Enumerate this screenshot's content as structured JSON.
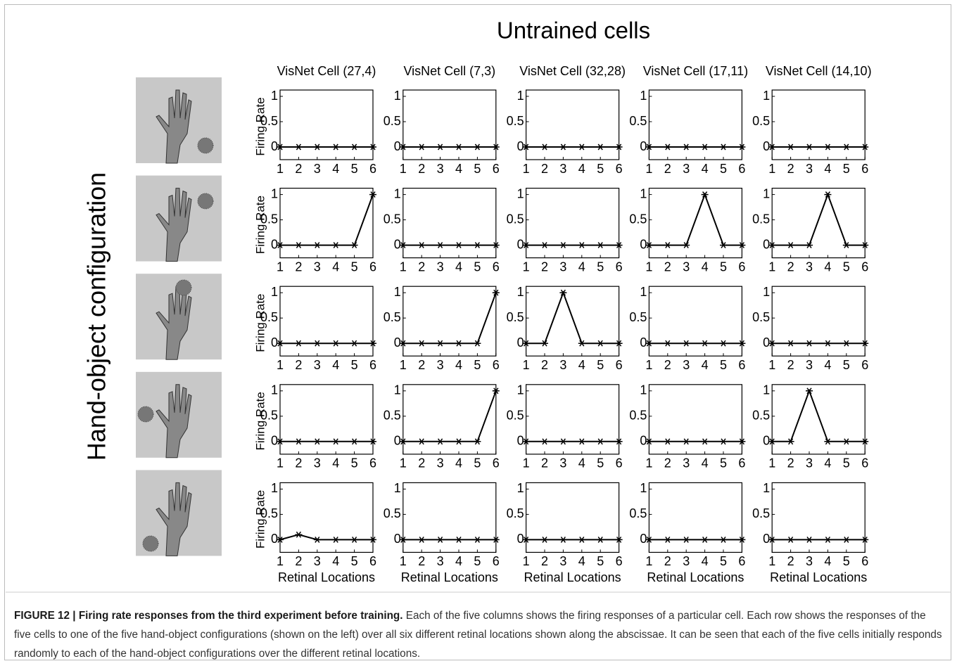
{
  "figure": {
    "title": "Untrained cells",
    "row_label": "Hand-object configuration",
    "caption": {
      "label": "FIGURE 12 | Firing rate responses from the third experiment before training.",
      "text": "Each of the five columns shows the firing responses of a particular cell. Each row shows the responses of the five cells to one of the five hand-object configurations (shown on the left) over all six different retinal locations shown along the abscissae. It can be seen that each of the five cells initially responds randomly to each of the hand-object configurations over the different retinal locations."
    }
  },
  "chart_data": [
    {
      "type": "line",
      "title": "VisNet Cell (27,4)",
      "ylabel": "Firing Rate",
      "x": [
        1,
        2,
        3,
        4,
        5,
        6
      ],
      "values": [
        0,
        0,
        0,
        0,
        0,
        0
      ],
      "color": "#000000",
      "xlim": [
        1,
        6
      ],
      "ylim": [
        -0.25,
        1.125
      ],
      "xticks": [
        1,
        2,
        3,
        4,
        5,
        6
      ],
      "yticks": [
        0,
        0.5,
        1
      ]
    },
    {
      "type": "line",
      "title": "VisNet Cell (7,3)",
      "x": [
        1,
        2,
        3,
        4,
        5,
        6
      ],
      "values": [
        0,
        0,
        0,
        0,
        0,
        0
      ],
      "color": "#000000",
      "xlim": [
        1,
        6
      ],
      "ylim": [
        -0.25,
        1.125
      ],
      "xticks": [
        1,
        2,
        3,
        4,
        5,
        6
      ],
      "yticks": [
        0,
        0.5,
        1
      ]
    },
    {
      "type": "line",
      "title": "VisNet Cell (32,28)",
      "x": [
        1,
        2,
        3,
        4,
        5,
        6
      ],
      "values": [
        0,
        0,
        0,
        0,
        0,
        0
      ],
      "color": "#000000",
      "xlim": [
        1,
        6
      ],
      "ylim": [
        -0.25,
        1.125
      ],
      "xticks": [
        1,
        2,
        3,
        4,
        5,
        6
      ],
      "yticks": [
        0,
        0.5,
        1
      ]
    },
    {
      "type": "line",
      "title": "VisNet Cell (17,11)",
      "x": [
        1,
        2,
        3,
        4,
        5,
        6
      ],
      "values": [
        0,
        0,
        0,
        0,
        0,
        0
      ],
      "color": "#000000",
      "xlim": [
        1,
        6
      ],
      "ylim": [
        -0.25,
        1.125
      ],
      "xticks": [
        1,
        2,
        3,
        4,
        5,
        6
      ],
      "yticks": [
        0,
        0.5,
        1
      ]
    },
    {
      "type": "line",
      "title": "VisNet Cell (14,10)",
      "x": [
        1,
        2,
        3,
        4,
        5,
        6
      ],
      "values": [
        0,
        0,
        0,
        0,
        0,
        0
      ],
      "color": "#000000",
      "xlim": [
        1,
        6
      ],
      "ylim": [
        -0.25,
        1.125
      ],
      "xticks": [
        1,
        2,
        3,
        4,
        5,
        6
      ],
      "yticks": [
        0,
        0.5,
        1
      ]
    },
    {
      "type": "line",
      "ylabel": "Firing Rate",
      "x": [
        1,
        2,
        3,
        4,
        5,
        6
      ],
      "values": [
        0,
        0,
        0,
        0,
        0,
        1
      ],
      "color": "#000000",
      "xlim": [
        1,
        6
      ],
      "ylim": [
        -0.25,
        1.125
      ],
      "xticks": [
        1,
        2,
        3,
        4,
        5,
        6
      ],
      "yticks": [
        0,
        0.5,
        1
      ]
    },
    {
      "type": "line",
      "x": [
        1,
        2,
        3,
        4,
        5,
        6
      ],
      "values": [
        0,
        0,
        0,
        0,
        0,
        0
      ],
      "color": "#000000",
      "xlim": [
        1,
        6
      ],
      "ylim": [
        -0.25,
        1.125
      ],
      "xticks": [
        1,
        2,
        3,
        4,
        5,
        6
      ],
      "yticks": [
        0,
        0.5,
        1
      ]
    },
    {
      "type": "line",
      "x": [
        1,
        2,
        3,
        4,
        5,
        6
      ],
      "values": [
        0,
        0,
        0,
        0,
        0,
        0
      ],
      "color": "#000000",
      "xlim": [
        1,
        6
      ],
      "ylim": [
        -0.25,
        1.125
      ],
      "xticks": [
        1,
        2,
        3,
        4,
        5,
        6
      ],
      "yticks": [
        0,
        0.5,
        1
      ]
    },
    {
      "type": "line",
      "x": [
        1,
        2,
        3,
        4,
        5,
        6
      ],
      "values": [
        0,
        0,
        0,
        1,
        0,
        0
      ],
      "color": "#000000",
      "xlim": [
        1,
        6
      ],
      "ylim": [
        -0.25,
        1.125
      ],
      "xticks": [
        1,
        2,
        3,
        4,
        5,
        6
      ],
      "yticks": [
        0,
        0.5,
        1
      ]
    },
    {
      "type": "line",
      "x": [
        1,
        2,
        3,
        4,
        5,
        6
      ],
      "values": [
        0,
        0,
        0,
        1,
        0,
        0
      ],
      "color": "#000000",
      "xlim": [
        1,
        6
      ],
      "ylim": [
        -0.25,
        1.125
      ],
      "xticks": [
        1,
        2,
        3,
        4,
        5,
        6
      ],
      "yticks": [
        0,
        0.5,
        1
      ]
    },
    {
      "type": "line",
      "ylabel": "Firing Rate",
      "x": [
        1,
        2,
        3,
        4,
        5,
        6
      ],
      "values": [
        0,
        0,
        0,
        0,
        0,
        0
      ],
      "color": "#000000",
      "xlim": [
        1,
        6
      ],
      "ylim": [
        -0.25,
        1.125
      ],
      "xticks": [
        1,
        2,
        3,
        4,
        5,
        6
      ],
      "yticks": [
        0,
        0.5,
        1
      ]
    },
    {
      "type": "line",
      "x": [
        1,
        2,
        3,
        4,
        5,
        6
      ],
      "values": [
        0,
        0,
        0,
        0,
        0,
        1
      ],
      "color": "#000000",
      "xlim": [
        1,
        6
      ],
      "ylim": [
        -0.25,
        1.125
      ],
      "xticks": [
        1,
        2,
        3,
        4,
        5,
        6
      ],
      "yticks": [
        0,
        0.5,
        1
      ]
    },
    {
      "type": "line",
      "x": [
        1,
        2,
        3,
        4,
        5,
        6
      ],
      "values": [
        0,
        0,
        1,
        0,
        0,
        0
      ],
      "color": "#000000",
      "xlim": [
        1,
        6
      ],
      "ylim": [
        -0.25,
        1.125
      ],
      "xticks": [
        1,
        2,
        3,
        4,
        5,
        6
      ],
      "yticks": [
        0,
        0.5,
        1
      ]
    },
    {
      "type": "line",
      "x": [
        1,
        2,
        3,
        4,
        5,
        6
      ],
      "values": [
        0,
        0,
        0,
        0,
        0,
        0
      ],
      "color": "#000000",
      "xlim": [
        1,
        6
      ],
      "ylim": [
        -0.25,
        1.125
      ],
      "xticks": [
        1,
        2,
        3,
        4,
        5,
        6
      ],
      "yticks": [
        0,
        0.5,
        1
      ]
    },
    {
      "type": "line",
      "x": [
        1,
        2,
        3,
        4,
        5,
        6
      ],
      "values": [
        0,
        0,
        0,
        0,
        0,
        0
      ],
      "color": "#000000",
      "xlim": [
        1,
        6
      ],
      "ylim": [
        -0.25,
        1.125
      ],
      "xticks": [
        1,
        2,
        3,
        4,
        5,
        6
      ],
      "yticks": [
        0,
        0.5,
        1
      ]
    },
    {
      "type": "line",
      "ylabel": "Firing Rate",
      "x": [
        1,
        2,
        3,
        4,
        5,
        6
      ],
      "values": [
        0,
        0,
        0,
        0,
        0,
        0
      ],
      "color": "#000000",
      "xlim": [
        1,
        6
      ],
      "ylim": [
        -0.25,
        1.125
      ],
      "xticks": [
        1,
        2,
        3,
        4,
        5,
        6
      ],
      "yticks": [
        0,
        0.5,
        1
      ]
    },
    {
      "type": "line",
      "x": [
        1,
        2,
        3,
        4,
        5,
        6
      ],
      "values": [
        0,
        0,
        0,
        0,
        0,
        1
      ],
      "color": "#000000",
      "xlim": [
        1,
        6
      ],
      "ylim": [
        -0.25,
        1.125
      ],
      "xticks": [
        1,
        2,
        3,
        4,
        5,
        6
      ],
      "yticks": [
        0,
        0.5,
        1
      ]
    },
    {
      "type": "line",
      "x": [
        1,
        2,
        3,
        4,
        5,
        6
      ],
      "values": [
        0,
        0,
        0,
        0,
        0,
        0
      ],
      "color": "#000000",
      "xlim": [
        1,
        6
      ],
      "ylim": [
        -0.25,
        1.125
      ],
      "xticks": [
        1,
        2,
        3,
        4,
        5,
        6
      ],
      "yticks": [
        0,
        0.5,
        1
      ]
    },
    {
      "type": "line",
      "x": [
        1,
        2,
        3,
        4,
        5,
        6
      ],
      "values": [
        0,
        0,
        0,
        0,
        0,
        0
      ],
      "color": "#000000",
      "xlim": [
        1,
        6
      ],
      "ylim": [
        -0.25,
        1.125
      ],
      "xticks": [
        1,
        2,
        3,
        4,
        5,
        6
      ],
      "yticks": [
        0,
        0.5,
        1
      ]
    },
    {
      "type": "line",
      "x": [
        1,
        2,
        3,
        4,
        5,
        6
      ],
      "values": [
        0,
        0,
        1,
        0,
        0,
        0
      ],
      "color": "#000000",
      "xlim": [
        1,
        6
      ],
      "ylim": [
        -0.25,
        1.125
      ],
      "xticks": [
        1,
        2,
        3,
        4,
        5,
        6
      ],
      "yticks": [
        0,
        0.5,
        1
      ]
    },
    {
      "type": "line",
      "ylabel": "Firing Rate",
      "xlabel": "Retinal Locations",
      "x": [
        1,
        2,
        3,
        4,
        5,
        6
      ],
      "values": [
        0,
        0.1,
        0,
        0,
        0,
        0
      ],
      "color": "#000000",
      "xlim": [
        1,
        6
      ],
      "ylim": [
        -0.25,
        1.125
      ],
      "xticks": [
        1,
        2,
        3,
        4,
        5,
        6
      ],
      "yticks": [
        0,
        0.5,
        1
      ]
    },
    {
      "type": "line",
      "xlabel": "Retinal Locations",
      "x": [
        1,
        2,
        3,
        4,
        5,
        6
      ],
      "values": [
        0,
        0,
        0,
        0,
        0,
        0
      ],
      "color": "#000000",
      "xlim": [
        1,
        6
      ],
      "ylim": [
        -0.25,
        1.125
      ],
      "xticks": [
        1,
        2,
        3,
        4,
        5,
        6
      ],
      "yticks": [
        0,
        0.5,
        1
      ]
    },
    {
      "type": "line",
      "xlabel": "Retinal Locations",
      "x": [
        1,
        2,
        3,
        4,
        5,
        6
      ],
      "values": [
        0,
        0,
        0,
        0,
        0,
        0
      ],
      "color": "#000000",
      "xlim": [
        1,
        6
      ],
      "ylim": [
        -0.25,
        1.125
      ],
      "xticks": [
        1,
        2,
        3,
        4,
        5,
        6
      ],
      "yticks": [
        0,
        0.5,
        1
      ]
    },
    {
      "type": "line",
      "xlabel": "Retinal Locations",
      "x": [
        1,
        2,
        3,
        4,
        5,
        6
      ],
      "values": [
        0,
        0,
        0,
        0,
        0,
        0
      ],
      "color": "#000000",
      "xlim": [
        1,
        6
      ],
      "ylim": [
        -0.25,
        1.125
      ],
      "xticks": [
        1,
        2,
        3,
        4,
        5,
        6
      ],
      "yticks": [
        0,
        0.5,
        1
      ]
    },
    {
      "type": "line",
      "xlabel": "Retinal Locations",
      "x": [
        1,
        2,
        3,
        4,
        5,
        6
      ],
      "values": [
        0,
        0,
        0,
        0,
        0,
        0
      ],
      "color": "#000000",
      "xlim": [
        1,
        6
      ],
      "ylim": [
        -0.25,
        1.125
      ],
      "xticks": [
        1,
        2,
        3,
        4,
        5,
        6
      ],
      "yticks": [
        0,
        0.5,
        1
      ]
    }
  ]
}
